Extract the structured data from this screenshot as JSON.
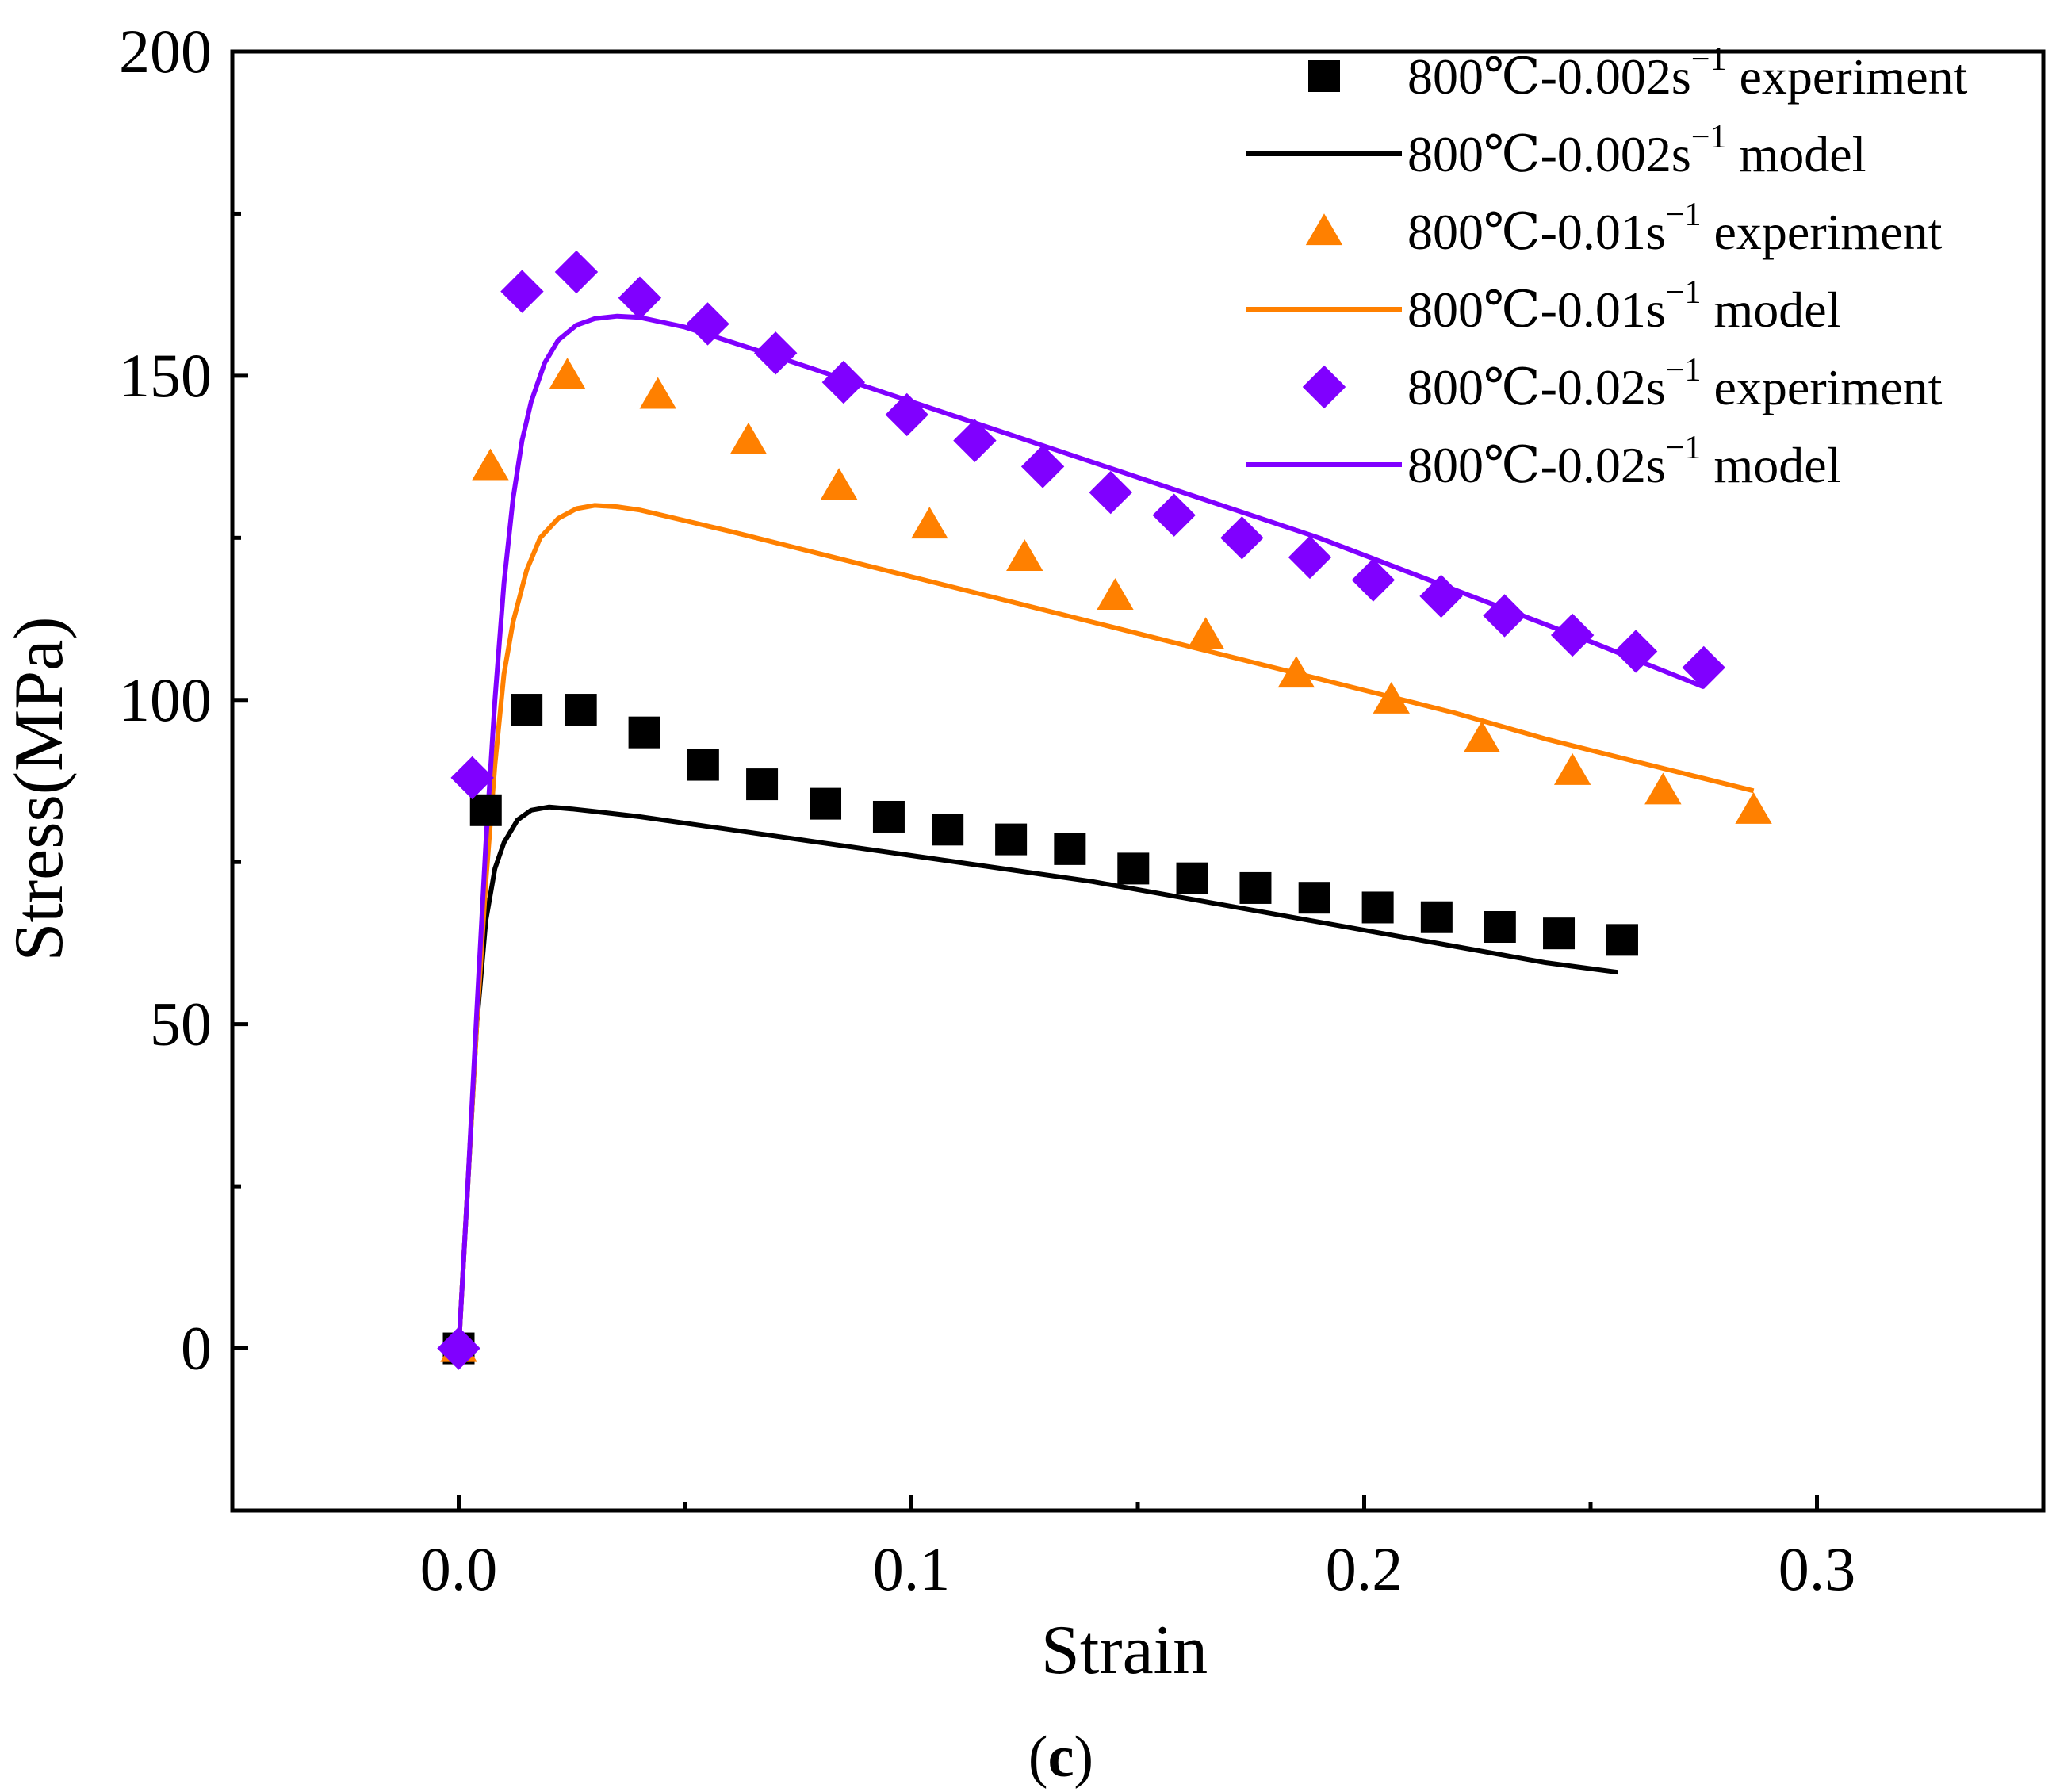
{
  "chart_data": {
    "type": "scatter",
    "title": "",
    "xlabel": "Strain",
    "ylabel": "Stress(MPa)",
    "xlim": [
      -0.05,
      0.35
    ],
    "ylim": [
      -25,
      200
    ],
    "xticks": [
      0.0,
      0.1,
      0.2,
      0.3
    ],
    "xtick_labels": [
      "0.0",
      "0.1",
      "0.2",
      "0.3"
    ],
    "yticks": [
      0,
      50,
      100,
      150,
      200
    ],
    "ytick_labels": [
      "0",
      "50",
      "100",
      "150",
      "200"
    ],
    "grid": false,
    "legend_position": "top-right",
    "caption_open": "(",
    "caption_letter": "c",
    "caption_close": ")",
    "series": [
      {
        "name": "800℃-0.002s⁻¹ experiment",
        "legend_main": "800℃-0.002s",
        "legend_sup": "−1",
        "legend_tail": " experiment",
        "kind": "marker",
        "marker": "square",
        "color": "#000000",
        "x": [
          0,
          0.006,
          0.015,
          0.027,
          0.041,
          0.054,
          0.067,
          0.081,
          0.095,
          0.108,
          0.122,
          0.135,
          0.149,
          0.162,
          0.176,
          0.189,
          0.203,
          0.216,
          0.23,
          0.243,
          0.257
        ],
        "y": [
          0,
          83,
          98.5,
          98.5,
          95,
          90,
          87,
          84,
          82,
          80,
          78.5,
          77,
          74,
          72.5,
          71,
          69.5,
          68,
          66.5,
          65,
          64,
          63
        ]
      },
      {
        "name": "800℃-0.002s⁻¹ model",
        "legend_main": "800℃-0.002s",
        "legend_sup": "−1",
        "legend_tail": " model",
        "kind": "line",
        "color": "#000000",
        "x": [
          0,
          0.002,
          0.004,
          0.006,
          0.008,
          0.01,
          0.013,
          0.016,
          0.02,
          0.025,
          0.03,
          0.04,
          0.06,
          0.08,
          0.1,
          0.12,
          0.14,
          0.16,
          0.18,
          0.2,
          0.22,
          0.24,
          0.256
        ],
        "y": [
          0,
          25,
          50,
          66,
          74,
          78,
          81.5,
          83,
          83.5,
          83.2,
          82.8,
          82,
          80,
          78,
          76,
          74,
          72,
          69.5,
          67,
          64.5,
          62,
          59.5,
          58
        ]
      },
      {
        "name": "800℃-0.01s⁻¹ experiment",
        "legend_main": "800℃-0.01s",
        "legend_sup": "−1",
        "legend_tail": " experiment",
        "kind": "marker",
        "marker": "triangle",
        "color": "#ff8000",
        "x": [
          0,
          0.007,
          0.024,
          0.044,
          0.064,
          0.084,
          0.104,
          0.125,
          0.145,
          0.165,
          0.185,
          0.206,
          0.226,
          0.246,
          0.266,
          0.286
        ],
        "y": [
          0,
          136,
          150,
          147,
          140,
          133,
          127,
          122,
          116,
          110,
          104,
          100,
          94,
          89,
          86,
          83
        ]
      },
      {
        "name": "800℃-0.01s⁻¹ model",
        "legend_main": "800℃-0.01s",
        "legend_sup": "−1",
        "legend_tail": " model",
        "kind": "line",
        "color": "#ff8000",
        "x": [
          0,
          0.002,
          0.004,
          0.006,
          0.008,
          0.01,
          0.012,
          0.015,
          0.018,
          0.022,
          0.026,
          0.03,
          0.035,
          0.04,
          0.06,
          0.08,
          0.1,
          0.12,
          0.14,
          0.16,
          0.18,
          0.2,
          0.22,
          0.24,
          0.26,
          0.286
        ],
        "y": [
          0,
          25,
          50,
          72,
          90,
          104,
          112,
          120,
          125,
          128,
          129.5,
          130,
          129.8,
          129.3,
          126,
          122.5,
          119,
          115.5,
          112,
          108.5,
          105,
          101.5,
          98,
          94,
          90.5,
          86
        ]
      },
      {
        "name": "800℃-0.02s⁻¹ experiment",
        "legend_main": "800℃-0.02s",
        "legend_sup": "−1",
        "legend_tail": " experiment",
        "kind": "marker",
        "marker": "diamond",
        "color": "#8000ff",
        "x": [
          0,
          0.003,
          0.014,
          0.026,
          0.04,
          0.055,
          0.07,
          0.085,
          0.099,
          0.114,
          0.129,
          0.144,
          0.158,
          0.173,
          0.188,
          0.202,
          0.217,
          0.231,
          0.246,
          0.26,
          0.275
        ],
        "y": [
          0,
          88,
          163,
          166,
          162,
          158,
          153.5,
          149,
          144,
          140,
          136,
          132,
          128.5,
          125,
          122,
          118.5,
          116,
          113,
          110,
          107.5,
          105
        ]
      },
      {
        "name": "800℃-0.02s⁻¹ model",
        "legend_main": "800℃-0.02s",
        "legend_sup": "−1",
        "legend_tail": " model",
        "kind": "line",
        "color": "#8000ff",
        "x": [
          0,
          0.002,
          0.004,
          0.006,
          0.008,
          0.01,
          0.012,
          0.014,
          0.016,
          0.019,
          0.022,
          0.026,
          0.03,
          0.035,
          0.04,
          0.05,
          0.07,
          0.1,
          0.13,
          0.16,
          0.19,
          0.22,
          0.25,
          0.275
        ],
        "y": [
          0,
          25,
          52,
          78,
          100,
          118,
          131,
          140,
          146,
          152,
          155.5,
          157.8,
          158.8,
          159.2,
          159,
          157.5,
          153,
          146,
          139,
          132,
          125,
          117,
          109,
          102
        ]
      }
    ]
  }
}
